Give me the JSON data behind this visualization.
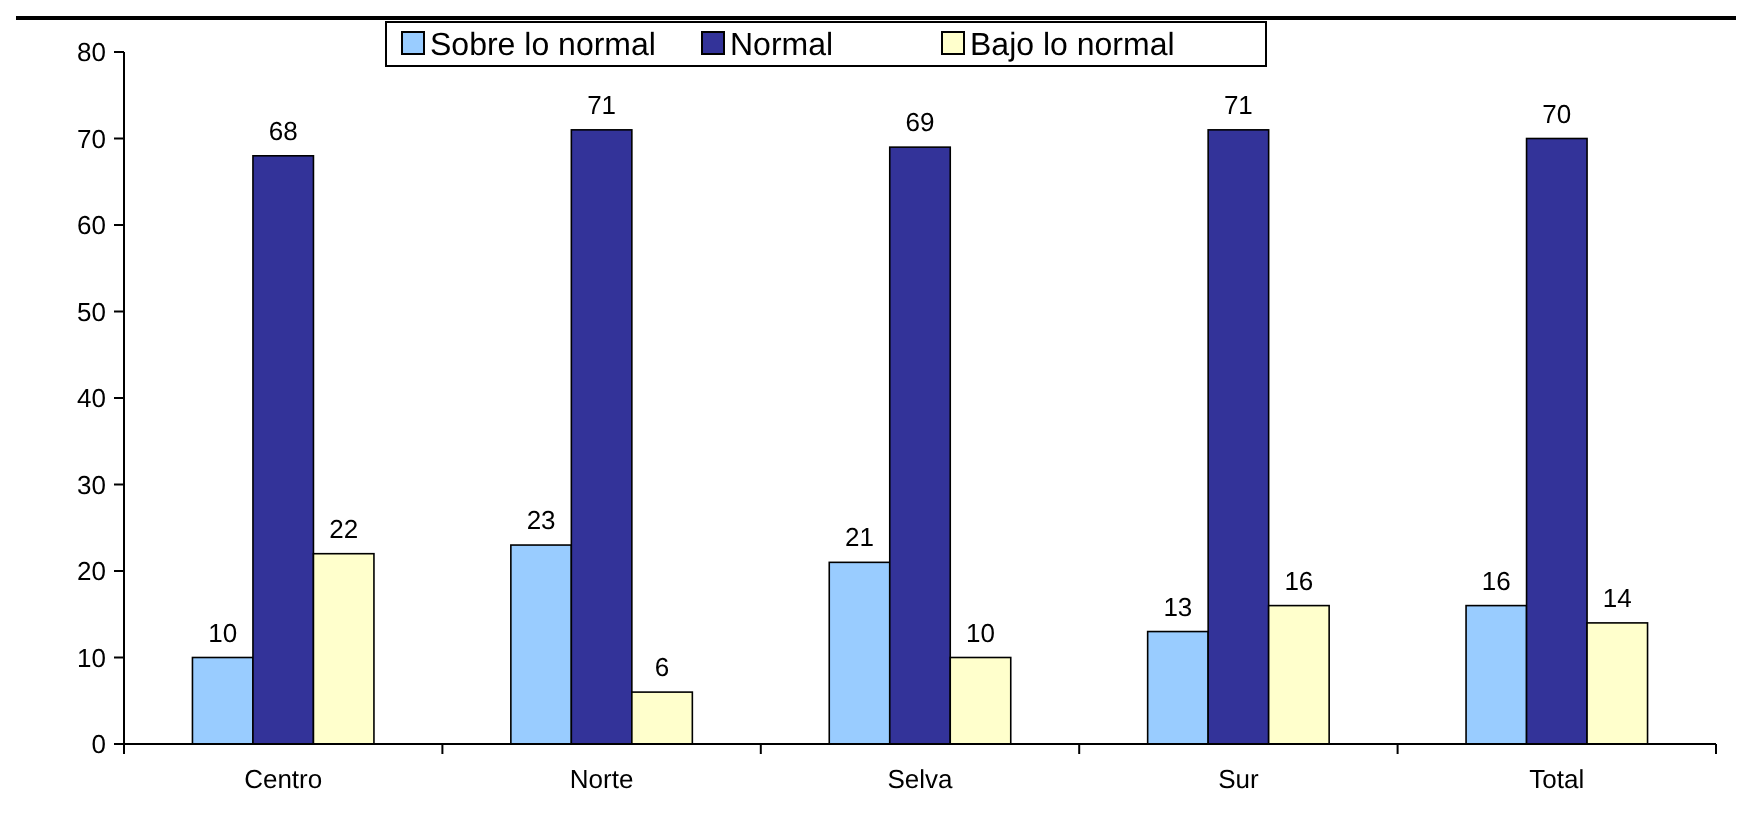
{
  "chart_data": {
    "type": "bar",
    "categories": [
      "Centro",
      "Norte",
      "Selva",
      "Sur",
      "Total"
    ],
    "series": [
      {
        "name": "Sobre lo normal",
        "color": "#99ccff",
        "values": [
          10,
          23,
          21,
          13,
          16
        ]
      },
      {
        "name": "Normal",
        "color": "#333399",
        "values": [
          68,
          71,
          69,
          71,
          70
        ]
      },
      {
        "name": "Bajo lo normal",
        "color": "#ffffcc",
        "values": [
          22,
          6,
          10,
          16,
          14
        ]
      }
    ],
    "ylim": [
      0,
      80
    ],
    "yticks": [
      0,
      10,
      20,
      30,
      40,
      50,
      60,
      70,
      80
    ],
    "data_labels": true,
    "legend": "top",
    "grid": false
  }
}
